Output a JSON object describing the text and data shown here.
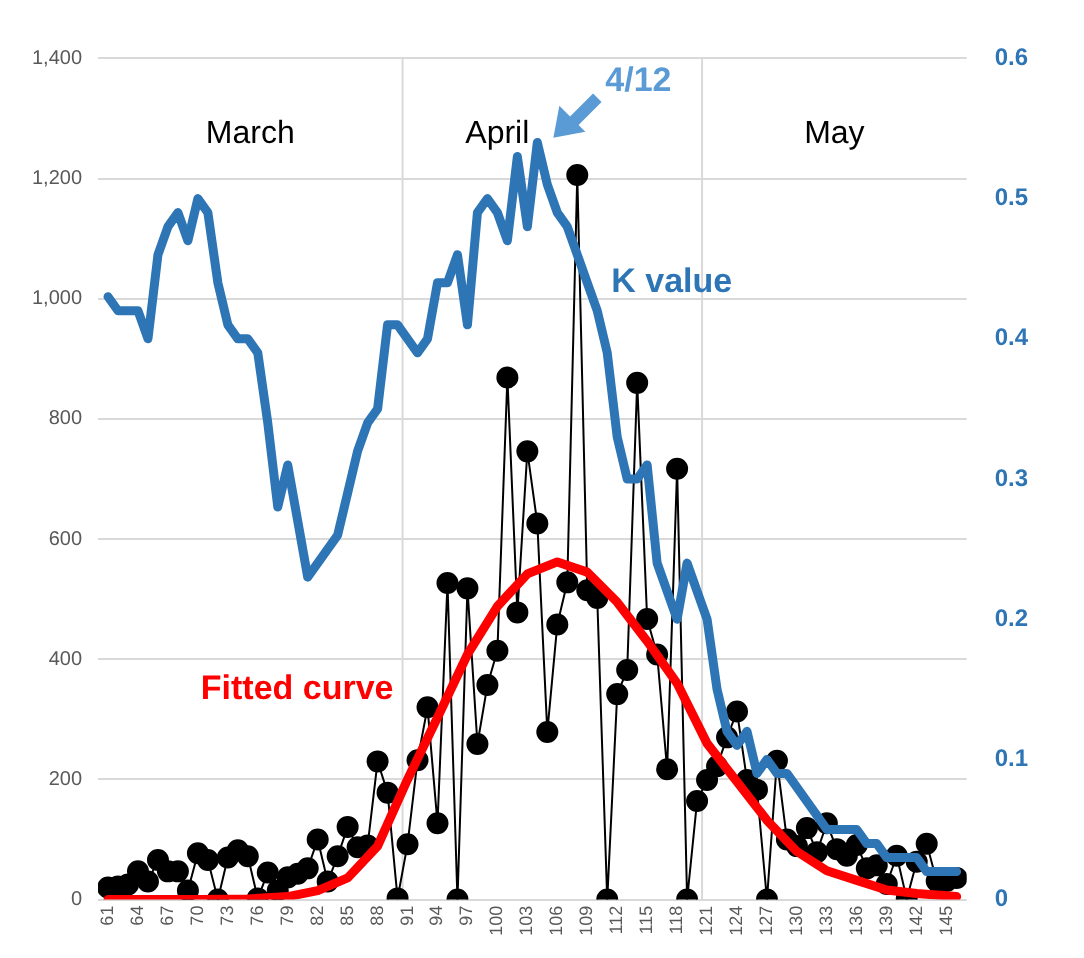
{
  "chart_data": {
    "type": "line",
    "x": [
      61,
      62,
      63,
      64,
      65,
      66,
      67,
      68,
      69,
      70,
      71,
      72,
      73,
      74,
      75,
      76,
      77,
      78,
      79,
      80,
      81,
      82,
      83,
      84,
      85,
      86,
      87,
      88,
      89,
      90,
      91,
      92,
      93,
      94,
      95,
      96,
      97,
      98,
      99,
      100,
      101,
      102,
      103,
      104,
      105,
      106,
      107,
      108,
      109,
      110,
      111,
      112,
      113,
      114,
      115,
      116,
      117,
      118,
      119,
      120,
      121,
      122,
      123,
      124,
      125,
      126,
      127,
      128,
      129,
      130,
      131,
      132,
      133,
      134,
      135,
      136,
      137,
      138,
      139,
      140,
      141,
      142,
      143,
      144,
      145,
      146
    ],
    "series": [
      {
        "color": "#000000",
        "marker": "circle",
        "values": [
          20,
          22,
          25,
          47,
          30,
          66,
          47,
          47,
          15,
          77,
          66,
          0,
          70,
          82,
          72,
          2,
          45,
          15,
          37,
          43,
          52,
          100,
          30,
          72,
          121,
          87,
          90,
          230,
          178,
          2,
          92,
          232,
          320,
          127,
          527,
          0,
          518,
          259,
          357,
          414,
          869,
          478,
          746,
          626,
          279,
          458,
          528,
          1206,
          515,
          502,
          0,
          342,
          382,
          860,
          467,
          408,
          217,
          717,
          0,
          164,
          199,
          222,
          270,
          313,
          199,
          183,
          0,
          231,
          100,
          89,
          119,
          79,
          127,
          84,
          73,
          91,
          52,
          57,
          26,
          73,
          1,
          63,
          93,
          31,
          31,
          36
        ]
      },
      {
        "name": "Fitted curve",
        "color": "#ff0000",
        "x": [
          61,
          70,
          75,
          79,
          82,
          85,
          88,
          91,
          94,
          97,
          100,
          103,
          106,
          109,
          112,
          115,
          118,
          121,
          124,
          127,
          130,
          133,
          136,
          139,
          142,
          146
        ],
        "values": [
          0,
          0,
          1,
          5,
          15,
          36,
          89,
          200,
          303,
          408,
          488,
          542,
          562,
          545,
          495,
          430,
          360,
          260,
          196,
          132,
          80,
          48,
          32,
          16,
          10,
          5
        ]
      },
      {
        "name": "K value",
        "color": "#2e75b6",
        "axis": "y2",
        "values": [
          0.43,
          0.42,
          0.42,
          0.42,
          0.4,
          0.46,
          0.48,
          0.49,
          0.47,
          0.5,
          0.49,
          0.44,
          0.41,
          0.4,
          0.4,
          0.39,
          0.34,
          0.28,
          0.31,
          0.27,
          0.23,
          0.24,
          0.25,
          0.26,
          0.29,
          0.32,
          0.34,
          0.35,
          0.41,
          0.41,
          0.4,
          0.39,
          0.4,
          0.44,
          0.44,
          0.46,
          0.41,
          0.49,
          0.5,
          0.49,
          0.47,
          0.53,
          0.48,
          0.54,
          0.51,
          0.49,
          0.48,
          0.46,
          0.44,
          0.42,
          0.39,
          0.33,
          0.3,
          0.3,
          0.31,
          0.24,
          0.22,
          0.2,
          0.24,
          0.22,
          0.2,
          0.15,
          0.12,
          0.11,
          0.12,
          0.09,
          0.1,
          0.09,
          0.09,
          0.08,
          0.07,
          0.06,
          0.05,
          0.05,
          0.05,
          0.05,
          0.04,
          0.04,
          0.03,
          0.03,
          0.03,
          0.03,
          0.02,
          0.02,
          0.02,
          0.02
        ]
      }
    ],
    "xlim": [
      60,
      147
    ],
    "xticks": [
      61,
      64,
      67,
      70,
      73,
      76,
      79,
      82,
      85,
      88,
      91,
      94,
      97,
      100,
      103,
      106,
      109,
      112,
      115,
      118,
      121,
      124,
      127,
      130,
      133,
      136,
      139,
      142,
      145
    ],
    "ylim": [
      0,
      1400
    ],
    "yticks": [
      0,
      200,
      400,
      600,
      800,
      {
        "value": 1000,
        "label": "1,000"
      },
      {
        "value": 1200,
        "label": "1,200"
      },
      {
        "value": 1400,
        "label": "1,400"
      }
    ],
    "y2lim": [
      0,
      0.6
    ],
    "y2ticks": [
      0,
      0.1,
      0.2,
      0.3,
      0.4,
      0.5,
      0.6
    ],
    "grid": "y",
    "legend": false,
    "ref_lines": [
      {
        "axis": "x",
        "value": 90.5,
        "color": "#d9d9d9"
      },
      {
        "axis": "x",
        "value": 120.5,
        "color": "#d9d9d9"
      }
    ],
    "annotations": [
      "March",
      "April",
      "May",
      {
        "text": "4/12",
        "x": 104,
        "y": 1248
      }
    ]
  }
}
